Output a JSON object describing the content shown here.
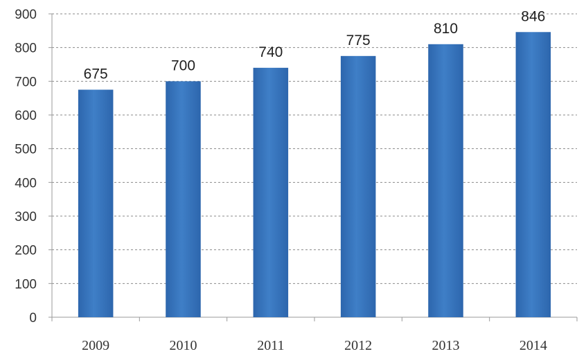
{
  "chart_data": {
    "type": "bar",
    "title": "",
    "xlabel": "",
    "ylabel": "",
    "categories": [
      "2009",
      "2010",
      "2011",
      "2012",
      "2013",
      "2014"
    ],
    "values": [
      675,
      700,
      740,
      775,
      810,
      846
    ],
    "data_labels": [
      "675",
      "700",
      "740",
      "775",
      "810",
      "846"
    ],
    "ylim": [
      0,
      900
    ],
    "yticks": [
      0,
      100,
      200,
      300,
      400,
      500,
      600,
      700,
      800,
      900
    ],
    "ytick_labels": [
      "0",
      "100",
      "200",
      "300",
      "400",
      "500",
      "600",
      "700",
      "800",
      "900"
    ],
    "grid": true,
    "grid_style": "dashed",
    "legend": "none",
    "bar_color": "#3f7fc7",
    "bar_color_dark": "#2d66ad",
    "grid_color": "#8a8a8a",
    "axis_color": "#9a9a9a"
  }
}
